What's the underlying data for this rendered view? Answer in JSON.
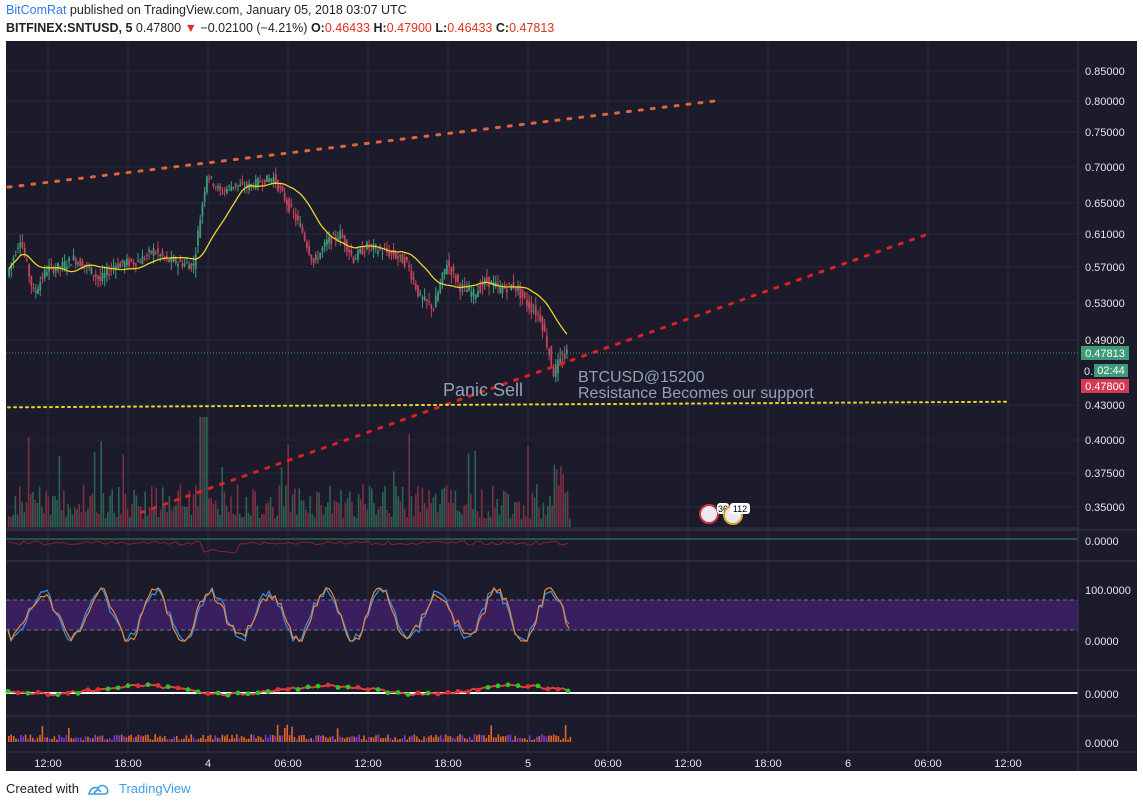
{
  "header": {
    "author": "BitComRat",
    "published_text": " published on TradingView.com, January 05, 2018 03:07 UTC",
    "symbol": "BITFINEX:SNTUSD, 5",
    "last_price": "0.47800",
    "change_arrow": "▼",
    "change": "−0.02100 (−4.21%)",
    "o_label": "O:",
    "o_value": "0.46433",
    "h_label": "H:",
    "h_value": "0.47900",
    "l_label": "L:",
    "l_value": "0.46433",
    "c_label": "C:",
    "c_value": "0.47813"
  },
  "footer": {
    "created_with": "Created with",
    "brand": "TradingView"
  },
  "colors": {
    "background": "#1b1b2b",
    "grid": "#2a2a3c",
    "up": "#3f9a7a",
    "down": "#c4445a",
    "ma": "#e8d42a",
    "resistance": "#e0633a",
    "trend": "#e02020",
    "support": "#e8d42a",
    "stoch_band": "#3a1f5e"
  },
  "chart_data": {
    "type": "candlestick",
    "price_axis": {
      "ticks": [
        "0.85000",
        "0.80000",
        "0.75000",
        "0.70000",
        "0.65000",
        "0.61000",
        "0.57000",
        "0.53000",
        "0.49000",
        "0.43000",
        "0.40000",
        "0.37500",
        "0.35000"
      ]
    },
    "time_axis": {
      "ticks": [
        "12:00",
        "18:00",
        "4",
        "06:00",
        "12:00",
        "18:00",
        "5",
        "06:00",
        "12:00",
        "18:00",
        "6",
        "06:00",
        "12:00"
      ]
    },
    "price_labels": {
      "close_tag": "0.47813",
      "partial_tag": "0.",
      "countdown_tag": "02:44",
      "last_tag": "0.47800"
    },
    "annotations": {
      "panic": "Panic Sell",
      "btc": "BTCUSD@15200",
      "resistance": "Resistance Becomes our support"
    },
    "event_badges": [
      "36",
      "112"
    ],
    "trendlines": [
      {
        "name": "upper-channel",
        "from": [
          "3 09:00",
          0.672
        ],
        "to": [
          "5 14:00",
          0.8
        ],
        "style": "dotted"
      },
      {
        "name": "rising-trend",
        "from": [
          "3 19:00",
          0.346
        ],
        "to": [
          "6 06:00",
          0.61
        ],
        "style": "dotted"
      },
      {
        "name": "support",
        "from": [
          "3 09:00",
          0.428
        ],
        "to": [
          "6 12:00",
          0.433
        ],
        "level": 0.43,
        "style": "dotted"
      }
    ],
    "price_series_approx": [
      [
        "3 09:00",
        0.56
      ],
      [
        "3 10:00",
        0.605
      ],
      [
        "3 11:00",
        0.54
      ],
      [
        "3 12:00",
        0.568
      ],
      [
        "3 13:00",
        0.57
      ],
      [
        "3 14:00",
        0.58
      ],
      [
        "3 15:00",
        0.57
      ],
      [
        "3 16:00",
        0.555
      ],
      [
        "3 17:00",
        0.572
      ],
      [
        "3 18:00",
        0.575
      ],
      [
        "3 19:00",
        0.578
      ],
      [
        "3 20:00",
        0.59
      ],
      [
        "3 21:00",
        0.578
      ],
      [
        "3 22:00",
        0.575
      ],
      [
        "3 23:00",
        0.572
      ],
      [
        "4 00:00",
        0.69
      ],
      [
        "4 01:00",
        0.665
      ],
      [
        "4 02:00",
        0.675
      ],
      [
        "4 03:00",
        0.672
      ],
      [
        "4 04:00",
        0.68
      ],
      [
        "4 05:00",
        0.685
      ],
      [
        "4 06:00",
        0.65
      ],
      [
        "4 07:00",
        0.62
      ],
      [
        "4 08:00",
        0.575
      ],
      [
        "4 09:00",
        0.6
      ],
      [
        "4 10:00",
        0.61
      ],
      [
        "4 11:00",
        0.58
      ],
      [
        "4 12:00",
        0.595
      ],
      [
        "4 13:00",
        0.59
      ],
      [
        "4 14:00",
        0.585
      ],
      [
        "4 15:00",
        0.575
      ],
      [
        "4 16:00",
        0.535
      ],
      [
        "4 17:00",
        0.525
      ],
      [
        "4 18:00",
        0.575
      ],
      [
        "4 19:00",
        0.548
      ],
      [
        "4 20:00",
        0.54
      ],
      [
        "4 21:00",
        0.555
      ],
      [
        "4 22:00",
        0.545
      ],
      [
        "4 23:00",
        0.55
      ],
      [
        "5 00:00",
        0.53
      ],
      [
        "5 01:00",
        0.515
      ],
      [
        "5 02:00",
        0.46
      ],
      [
        "5 03:00",
        0.478
      ]
    ],
    "indicators": [
      {
        "name": "Volume",
        "last_value_axis": null
      },
      {
        "name": "Oscillator",
        "axis_ticks": [
          "0.0000"
        ]
      },
      {
        "name": "Stochastic RSI",
        "axis_ticks": [
          "100.0000",
          "0.0000"
        ]
      },
      {
        "name": "Momentum",
        "axis_ticks": [
          "0.0000"
        ]
      },
      {
        "name": "Histogram",
        "axis_ticks": [
          "0.0000"
        ]
      }
    ]
  }
}
